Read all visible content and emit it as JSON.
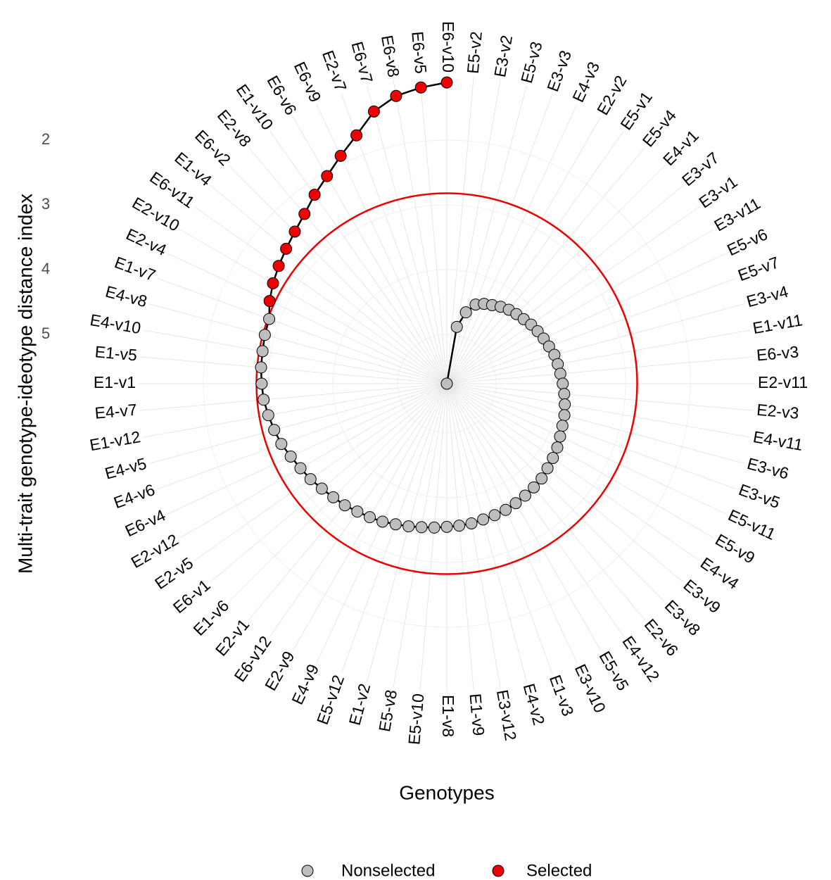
{
  "chart_data": {
    "type": "polar-line",
    "x_label": "Genotypes",
    "y_label": "Multi-trait genotype-ideotype distance index",
    "categories": [
      "E5-v2",
      "E3-v2",
      "E5-v3",
      "E3-v3",
      "E4-v3",
      "E2-v2",
      "E5-v1",
      "E5-v4",
      "E4-v1",
      "E3-v7",
      "E3-v1",
      "E3-v11",
      "E5-v6",
      "E5-v7",
      "E3-v4",
      "E1-v11",
      "E6-v3",
      "E2-v11",
      "E2-v3",
      "E4-v11",
      "E3-v6",
      "E3-v5",
      "E5-v11",
      "E5-v9",
      "E4-v4",
      "E3-v9",
      "E3-v8",
      "E2-v6",
      "E4-v12",
      "E5-v5",
      "E3-v10",
      "E1-v3",
      "E4-v2",
      "E3-v12",
      "E1-v9",
      "E1-v8",
      "E5-v10",
      "E5-v8",
      "E1-v2",
      "E5-v12",
      "E4-v9",
      "E2-v9",
      "E6-v12",
      "E2-v1",
      "E1-v6",
      "E6-v1",
      "E2-v5",
      "E2-v12",
      "E6-v4",
      "E4-v6",
      "E4-v5",
      "E1-v12",
      "E4-v7",
      "E1-v1",
      "E1-v5",
      "E4-v10",
      "E4-v8",
      "E1-v7",
      "E2-v4",
      "E2-v10",
      "E6-v11",
      "E1-v4",
      "E6-v2",
      "E2-v8",
      "E1-v10",
      "E6-v6",
      "E6-v9",
      "E2-v7",
      "E6-v7",
      "E6-v8",
      "E6-v5",
      "E6-v10"
    ],
    "series": [
      {
        "name": "Nonselected",
        "color": "#bebebe",
        "values": [
          5.76,
          4.87,
          4.62,
          4.46,
          4.4,
          4.36,
          4.31,
          4.27,
          4.24,
          4.21,
          4.17,
          4.14,
          4.11,
          4.08,
          4.04,
          4.02,
          4.0,
          3.97,
          3.94,
          3.91,
          3.88,
          3.86,
          3.83,
          3.79,
          3.76,
          3.73,
          3.69,
          3.67,
          3.65,
          3.63,
          3.61,
          3.6,
          3.59,
          3.57,
          3.56,
          3.55,
          3.53,
          3.51,
          3.48,
          3.45,
          3.41,
          3.38,
          3.35,
          3.31,
          3.28,
          3.24,
          3.19,
          3.15,
          3.1,
          3.04,
          3.0,
          2.96,
          2.92,
          2.9,
          2.88,
          2.87,
          2.85,
          2.84,
          null,
          null,
          null,
          null,
          null,
          null,
          null,
          null,
          null,
          null,
          null,
          null,
          null,
          null
        ]
      },
      {
        "name": "Selected",
        "color": "#ee0000",
        "values": [
          null,
          null,
          null,
          null,
          null,
          null,
          null,
          null,
          null,
          null,
          null,
          null,
          null,
          null,
          null,
          null,
          null,
          null,
          null,
          null,
          null,
          null,
          null,
          null,
          null,
          null,
          null,
          null,
          null,
          null,
          null,
          null,
          null,
          null,
          null,
          null,
          null,
          null,
          null,
          null,
          null,
          null,
          null,
          null,
          null,
          null,
          null,
          null,
          null,
          null,
          null,
          null,
          null,
          null,
          null,
          null,
          null,
          null,
          2.74,
          2.66,
          2.59,
          2.52,
          2.44,
          2.34,
          2.2,
          2.06,
          1.88,
          1.68,
          1.41,
          1.25,
          1.17,
          1.11
        ]
      }
    ],
    "threshold": 2.82,
    "threshold_color": "#ee0000",
    "line_color": "#000000",
    "ylim": [
      5.76,
      1.0
    ],
    "yticks": [
      2,
      3,
      4,
      5
    ],
    "grid": true,
    "legend": "bottom"
  }
}
